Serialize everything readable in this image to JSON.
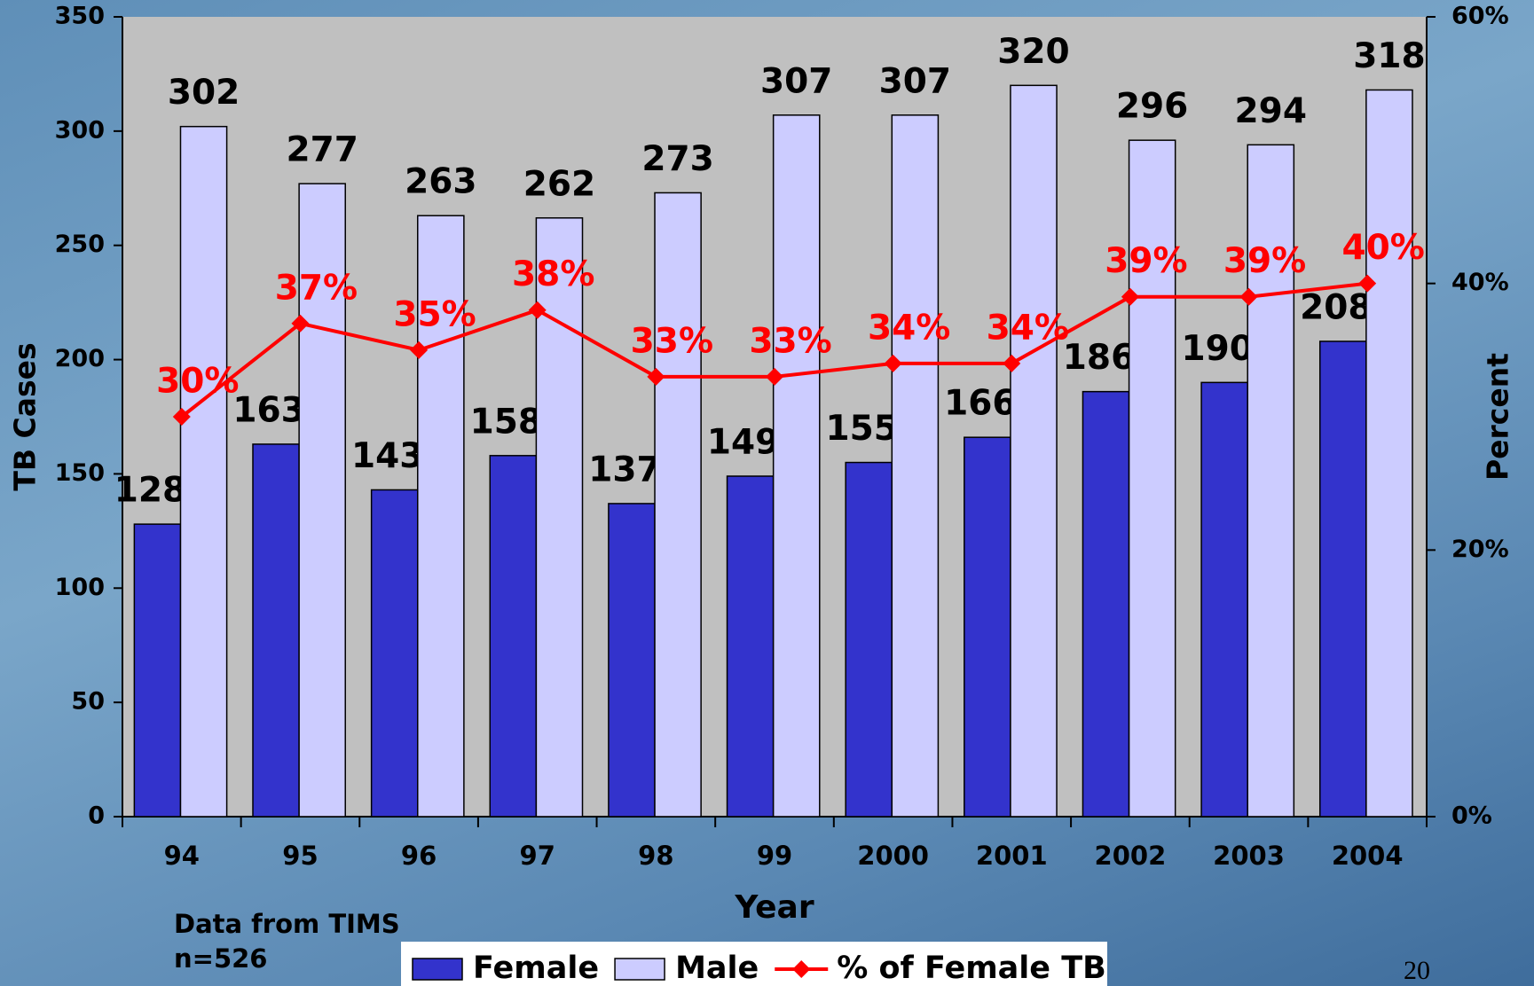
{
  "chart_data": {
    "type": "bar",
    "x_label": "Year",
    "y_label": "TB Cases",
    "y2_label": "Percent",
    "annotations": [
      "Data from TIMS",
      "n=526",
      "20"
    ],
    "categories": [
      "94",
      "95",
      "96",
      "97",
      "98",
      "99",
      "2000",
      "2001",
      "2002",
      "2003",
      "2004"
    ],
    "series": [
      {
        "name": "Female",
        "color": "#3333cc",
        "values": [
          128,
          163,
          143,
          158,
          137,
          149,
          155,
          166,
          186,
          190,
          208
        ]
      },
      {
        "name": "Male",
        "color": "#ccccff",
        "values": [
          302,
          277,
          263,
          262,
          273,
          307,
          307,
          320,
          296,
          294,
          318
        ]
      },
      {
        "name": "% of Female TB",
        "color": "#ff0000",
        "type": "line",
        "axis": "y2",
        "values": [
          30,
          37,
          35,
          38,
          33,
          33,
          34,
          34,
          39,
          39,
          40
        ],
        "value_labels": [
          "30%",
          "37%",
          "35%",
          "38%",
          "33%",
          "33%",
          "34%",
          "34%",
          "39%",
          "39%",
          "40%"
        ]
      }
    ],
    "ylim": [
      0,
      350
    ],
    "yticks": [
      0,
      50,
      100,
      150,
      200,
      250,
      300,
      350
    ],
    "y2lim": [
      0,
      60
    ],
    "y2ticks": [
      {
        "value": 0,
        "label": "0%"
      },
      {
        "value": 20,
        "label": "20%"
      },
      {
        "value": 40,
        "label": "40%"
      },
      {
        "value": 60,
        "label": "60%"
      }
    ],
    "legend": "bottom"
  }
}
